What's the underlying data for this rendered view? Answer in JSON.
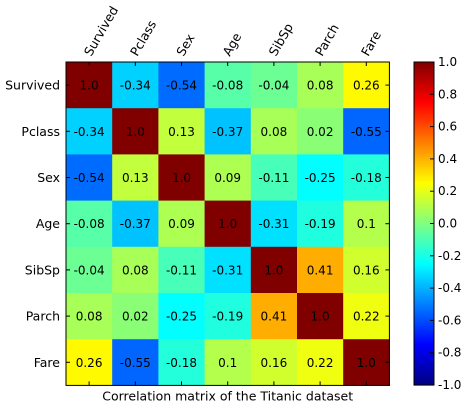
{
  "chart_data": {
    "type": "heatmap",
    "rows": [
      "Survived",
      "Pclass",
      "Sex",
      "Age",
      "SibSp",
      "Parch",
      "Fare"
    ],
    "columns": [
      "Survived",
      "Pclass",
      "Sex",
      "Age",
      "SibSp",
      "Parch",
      "Fare"
    ],
    "values": [
      [
        1.0,
        -0.34,
        -0.54,
        -0.08,
        -0.04,
        0.08,
        0.26
      ],
      [
        -0.34,
        1.0,
        0.13,
        -0.37,
        0.08,
        0.02,
        -0.55
      ],
      [
        -0.54,
        0.13,
        1.0,
        0.09,
        -0.11,
        -0.25,
        -0.18
      ],
      [
        -0.08,
        -0.37,
        0.09,
        1.0,
        -0.31,
        -0.19,
        0.1
      ],
      [
        -0.04,
        0.08,
        -0.11,
        -0.31,
        1.0,
        0.41,
        0.16
      ],
      [
        0.08,
        0.02,
        -0.25,
        -0.19,
        0.41,
        1.0,
        0.22
      ],
      [
        0.26,
        -0.55,
        -0.18,
        0.1,
        0.16,
        0.22,
        1.0
      ]
    ],
    "value_labels": [
      [
        "1.0",
        "-0.34",
        "-0.54",
        "-0.08",
        "-0.04",
        "0.08",
        "0.26"
      ],
      [
        "-0.34",
        "1.0",
        "0.13",
        "-0.37",
        "0.08",
        "0.02",
        "-0.55"
      ],
      [
        "-0.54",
        "0.13",
        "1.0",
        "0.09",
        "-0.11",
        "-0.25",
        "-0.18"
      ],
      [
        "-0.08",
        "-0.37",
        "0.09",
        "1.0",
        "-0.31",
        "-0.19",
        "0.1"
      ],
      [
        "-0.04",
        "0.08",
        "-0.11",
        "-0.31",
        "1.0",
        "0.41",
        "0.16"
      ],
      [
        "0.08",
        "0.02",
        "-0.25",
        "-0.19",
        "0.41",
        "1.0",
        "0.22"
      ],
      [
        "0.26",
        "-0.55",
        "-0.18",
        "0.1",
        "0.16",
        "0.22",
        "1.0"
      ]
    ],
    "colormap": "jet",
    "vmin": -1.0,
    "vmax": 1.0,
    "colorbar_ticks": [
      -1.0,
      -0.8,
      -0.6,
      -0.4,
      -0.2,
      0.0,
      0.2,
      0.4,
      0.6,
      0.8,
      1.0
    ],
    "colorbar_tick_labels": [
      "-1.0",
      "-0.8",
      "-0.6",
      "-0.4",
      "-0.2",
      "0.0",
      "0.2",
      "0.4",
      "0.6",
      "0.8",
      "1.0"
    ],
    "title": "",
    "xlabel": "Correlation matrix of the Titanic dataset",
    "ylabel": "",
    "x_tick_rotation_deg": 60,
    "grid": false,
    "legend": "colorbar-right"
  }
}
